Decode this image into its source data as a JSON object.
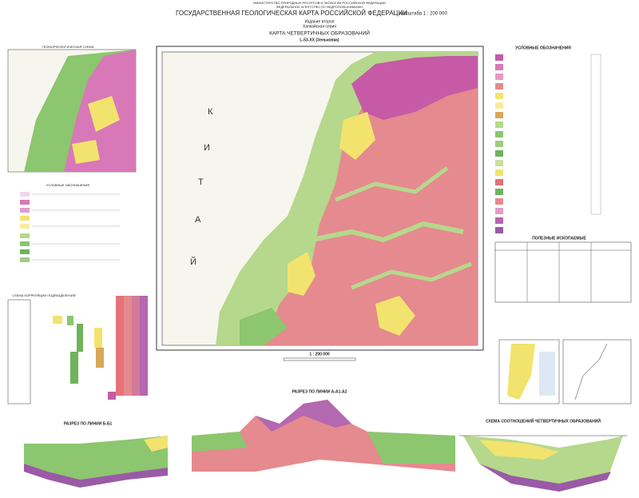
{
  "header": {
    "ministry": "МИНИСТЕРСТВО ПРИРОДНЫХ РЕСУРСОВ И ЭКОЛОГИИ РОССИЙСКОЙ ФЕДЕРАЦИИ",
    "agency": "ФЕДЕРАЛЬНОЕ АГЕНТСТВО ПО НЕДРОПОЛЬЗОВАНИЮ",
    "title": "ГОСУДАРСТВЕННАЯ ГЕОЛОГИЧЕСКАЯ КАРТА РОССИЙСКОЙ ФЕДЕРАЦИИ",
    "scale_text": "масштаба 1 : 200 000",
    "edition": "Издание второе",
    "series": "Ханкайская серия",
    "map_title": "КАРТА ЧЕТВЕРТИЧНЫХ ОБРАЗОВАНИЙ",
    "sheet": "L-53-XX (Зеньковка)"
  },
  "map": {
    "country_letters": [
      "К",
      "И",
      "Т",
      "А",
      "Й"
    ],
    "scale": "1 : 200 000"
  },
  "panels": {
    "geomorph": "ГЕОМОРФОЛОГИЧЕСКАЯ СХЕМА",
    "legend_small": "УСЛОВНЫЕ ОБОЗНАЧЕНИЯ",
    "correlation": "СХЕМА КОРРЕЛЯЦИИ ПОДРАЗДЕЛЕНИЙ",
    "legend_main": "УСЛОВНЫЕ ОБОЗНАЧЕНИЯ",
    "minerals": "ПОЛЕЗНЫЕ ИСКОПАЕМЫЕ",
    "section_b": "РАЗРЕЗ ПО ЛИНИИ Б-Б1",
    "section_a": "РАЗРЕЗ ПО ЛИНИИ А-А1-А2",
    "relations": "СХЕМА СООТНОШЕНИЙ ЧЕТВЕРТИЧНЫХ ОБРАЗОВАНИЙ"
  }
}
